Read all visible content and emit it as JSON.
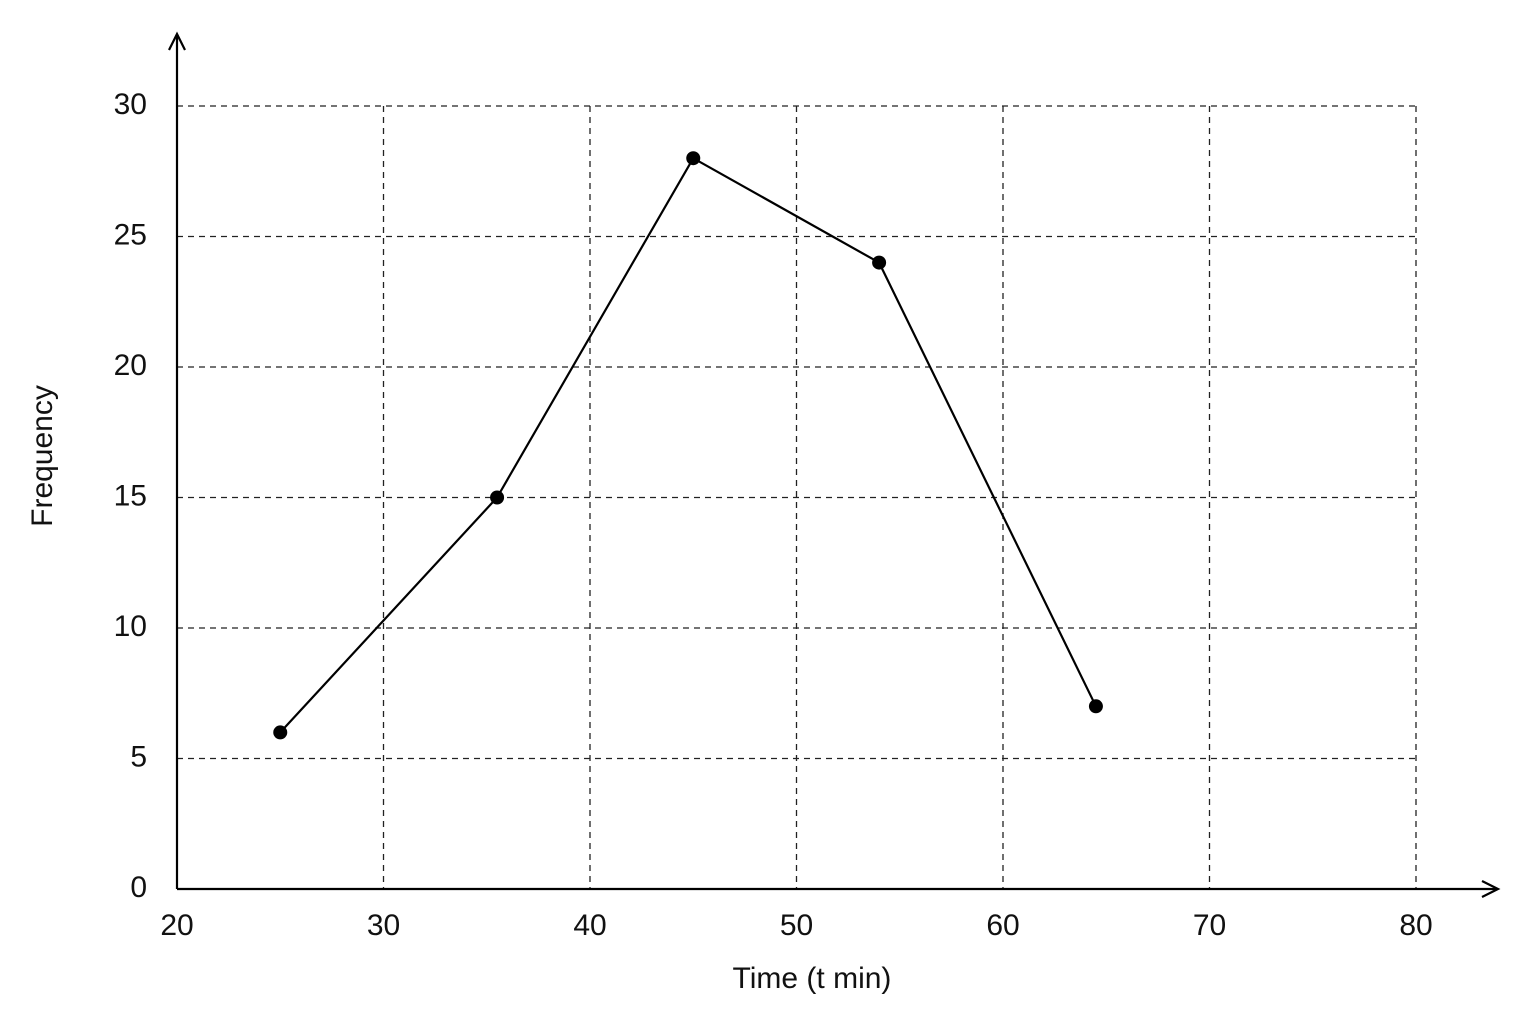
{
  "chart_data": {
    "type": "line",
    "x_label": "Time (t min)",
    "y_label": "Frequency",
    "x": [
      25,
      35.5,
      45,
      54,
      64.5
    ],
    "series": [
      {
        "color": "#000000",
        "values": [
          6,
          15,
          28,
          24,
          7
        ]
      }
    ],
    "xlim": [
      20,
      80
    ],
    "xticks": [
      20,
      30,
      40,
      50,
      60,
      70,
      80
    ],
    "ylim": [
      0,
      30
    ],
    "yticks": [
      0,
      5,
      10,
      15,
      20,
      25,
      30
    ],
    "grid": true
  }
}
